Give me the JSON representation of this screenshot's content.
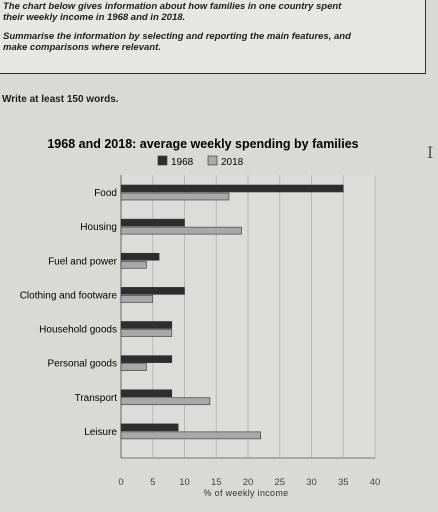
{
  "prompt": {
    "line1": "The chart below gives information about how families in one country spent",
    "line2": "their weekly income in 1968 and in 2018.",
    "line3": "Summarise the information by selecting and reporting the main features, and",
    "line4": "make comparisons where relevant.",
    "word_count": "Write at least 150 words."
  },
  "chart_data": {
    "type": "bar",
    "orientation": "horizontal",
    "title": "1968 and 2018: average weekly spending by families",
    "xlabel": "% of weekly income",
    "ylabel": "",
    "categories": [
      "Food",
      "Housing",
      "Fuel and power",
      "Clothing and footware",
      "Household goods",
      "Personal goods",
      "Transport",
      "Leisure"
    ],
    "series": [
      {
        "name": "1968",
        "values": [
          35,
          10,
          6,
          10,
          8,
          8,
          8,
          9
        ],
        "color": "#2e2e2e"
      },
      {
        "name": "2018",
        "values": [
          17,
          19,
          4,
          5,
          8,
          4,
          14,
          22
        ],
        "color": "#a8a8a8"
      }
    ],
    "xlim": [
      0,
      40
    ],
    "xticks": [
      "0",
      "5",
      "10",
      "15",
      "20",
      "25",
      "30",
      "35",
      "40"
    ],
    "grid": true,
    "legend_position": "top-center"
  }
}
